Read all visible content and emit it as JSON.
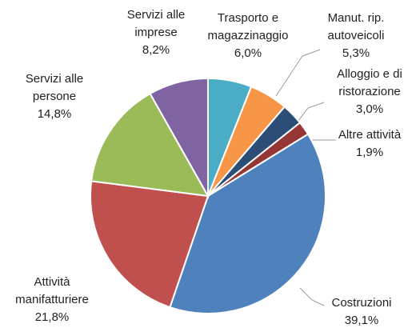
{
  "chart_data": {
    "type": "pie",
    "categories": [
      "Trasporto e magazzinaggio",
      "Manut. rip. autoveicoli",
      "Alloggio e di ristorazione",
      "Altre attività",
      "Costruzioni",
      "Attività manifatturiere",
      "Servizi alle persone",
      "Servizi alle imprese"
    ],
    "values": [
      6.0,
      5.3,
      3.0,
      1.9,
      39.1,
      21.8,
      14.8,
      8.2
    ],
    "value_labels": [
      "6,0%",
      "5,3%",
      "3,0%",
      "1,9%",
      "39,1%",
      "21,8%",
      "14,8%",
      "8,2%"
    ],
    "colors": [
      "#4bacc6",
      "#f79646",
      "#2c4d75",
      "#953735",
      "#4f81bd",
      "#c0504d",
      "#9bbb59",
      "#8064a2"
    ]
  }
}
